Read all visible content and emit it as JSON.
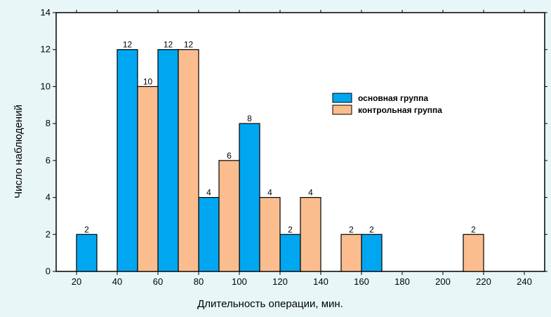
{
  "chart_data": {
    "type": "bar",
    "title": "",
    "xlabel": "Длительность операции, мин.",
    "ylabel": "Число наблюдений",
    "xlim": [
      10,
      250
    ],
    "ylim": [
      0,
      14
    ],
    "x_ticks": [
      20,
      40,
      60,
      80,
      100,
      120,
      140,
      160,
      180,
      200,
      220,
      240
    ],
    "y_ticks": [
      0,
      2,
      4,
      6,
      8,
      10,
      12,
      14
    ],
    "grid": false,
    "legend_position": "right",
    "series": [
      {
        "name": "основная группа",
        "color": "#00a7f0",
        "points": [
          {
            "x0": 20,
            "x1": 30,
            "value": 2
          },
          {
            "x0": 40,
            "x1": 50,
            "value": 12
          },
          {
            "x0": 60,
            "x1": 70,
            "value": 12
          },
          {
            "x0": 80,
            "x1": 90,
            "value": 4
          },
          {
            "x0": 100,
            "x1": 110,
            "value": 8
          },
          {
            "x0": 120,
            "x1": 130,
            "value": 2
          },
          {
            "x0": 160,
            "x1": 170,
            "value": 2
          }
        ]
      },
      {
        "name": "контрольная группа",
        "color": "#fbbd8e",
        "points": [
          {
            "x0": 50,
            "x1": 60,
            "value": 10
          },
          {
            "x0": 70,
            "x1": 80,
            "value": 12
          },
          {
            "x0": 90,
            "x1": 100,
            "value": 6
          },
          {
            "x0": 110,
            "x1": 120,
            "value": 4
          },
          {
            "x0": 130,
            "x1": 140,
            "value": 4
          },
          {
            "x0": 150,
            "x1": 160,
            "value": 2
          },
          {
            "x0": 210,
            "x1": 220,
            "value": 2
          }
        ]
      }
    ]
  }
}
